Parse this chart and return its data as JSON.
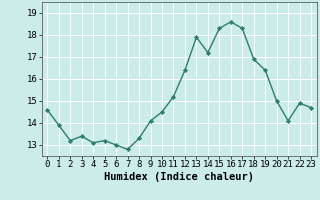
{
  "x": [
    0,
    1,
    2,
    3,
    4,
    5,
    6,
    7,
    8,
    9,
    10,
    11,
    12,
    13,
    14,
    15,
    16,
    17,
    18,
    19,
    20,
    21,
    22,
    23
  ],
  "y": [
    14.6,
    13.9,
    13.2,
    13.4,
    13.1,
    13.2,
    13.0,
    12.8,
    13.3,
    14.1,
    14.5,
    15.2,
    16.4,
    17.9,
    17.2,
    18.3,
    18.6,
    18.3,
    16.9,
    16.4,
    15.0,
    14.1,
    14.9,
    14.7
  ],
  "xlabel": "Humidex (Indice chaleur)",
  "ylim": [
    12.5,
    19.5
  ],
  "xlim": [
    -0.5,
    23.5
  ],
  "yticks": [
    13,
    14,
    15,
    16,
    17,
    18,
    19
  ],
  "xticks": [
    0,
    1,
    2,
    3,
    4,
    5,
    6,
    7,
    8,
    9,
    10,
    11,
    12,
    13,
    14,
    15,
    16,
    17,
    18,
    19,
    20,
    21,
    22,
    23
  ],
  "line_color": "#2e7d6e",
  "marker_color": "#2e7d6e",
  "bg_color": "#ccecea",
  "grid_color": "#ffffff",
  "tick_label_fontsize": 6.5,
  "xlabel_fontsize": 7.5,
  "line_width": 1.0,
  "marker_size": 2.2
}
